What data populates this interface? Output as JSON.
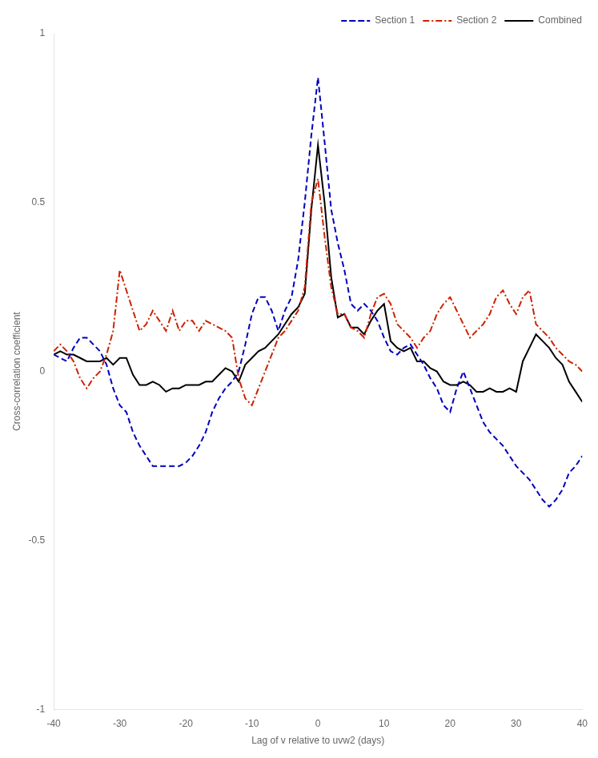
{
  "chart_data": {
    "type": "line",
    "xlabel": "Lag of v relative to uvw2 (days)",
    "ylabel": "Cross-correlation coefficient",
    "x": [
      -40,
      -39,
      -38,
      -37,
      -36,
      -35,
      -34,
      -33,
      -32,
      -31,
      -30,
      -29,
      -28,
      -27,
      -26,
      -25,
      -24,
      -23,
      -22,
      -21,
      -20,
      -19,
      -18,
      -17,
      -16,
      -15,
      -14,
      -13,
      -12,
      -11,
      -10,
      -9,
      -8,
      -7,
      -6,
      -5,
      -4,
      -3,
      -2,
      -1,
      0,
      1,
      2,
      3,
      4,
      5,
      6,
      7,
      8,
      9,
      10,
      11,
      12,
      13,
      14,
      15,
      16,
      17,
      18,
      19,
      20,
      21,
      22,
      23,
      24,
      25,
      26,
      27,
      28,
      29,
      30,
      31,
      32,
      33,
      34,
      35,
      36,
      37,
      38,
      39,
      40
    ],
    "series": [
      {
        "name": "Section 1",
        "color": "#0000bb",
        "line_style": "dashed",
        "values": [
          0.05,
          0.04,
          0.03,
          0.07,
          0.1,
          0.1,
          0.08,
          0.06,
          0.02,
          -0.05,
          -0.1,
          -0.12,
          -0.18,
          -0.22,
          -0.25,
          -0.28,
          -0.28,
          -0.28,
          -0.28,
          -0.28,
          -0.27,
          -0.25,
          -0.22,
          -0.18,
          -0.12,
          -0.08,
          -0.05,
          -0.03,
          0.0,
          0.08,
          0.17,
          0.22,
          0.22,
          0.18,
          0.12,
          0.18,
          0.22,
          0.33,
          0.5,
          0.7,
          0.87,
          0.68,
          0.48,
          0.38,
          0.3,
          0.2,
          0.18,
          0.2,
          0.18,
          0.15,
          0.1,
          0.06,
          0.05,
          0.07,
          0.08,
          0.05,
          0.02,
          -0.02,
          -0.05,
          -0.1,
          -0.12,
          -0.05,
          0.0,
          -0.05,
          -0.1,
          -0.15,
          -0.18,
          -0.2,
          -0.22,
          -0.25,
          -0.28,
          -0.3,
          -0.32,
          -0.35,
          -0.38,
          -0.4,
          -0.38,
          -0.35,
          -0.3,
          -0.28,
          -0.25
        ]
      },
      {
        "name": "Section 2",
        "color": "#cc2200",
        "line_style": "dashdot",
        "values": [
          0.06,
          0.08,
          0.06,
          0.03,
          -0.02,
          -0.05,
          -0.02,
          0.0,
          0.05,
          0.12,
          0.3,
          0.24,
          0.18,
          0.12,
          0.14,
          0.18,
          0.15,
          0.12,
          0.18,
          0.12,
          0.15,
          0.15,
          0.12,
          0.15,
          0.14,
          0.13,
          0.12,
          0.1,
          -0.02,
          -0.08,
          -0.1,
          -0.05,
          0.0,
          0.05,
          0.1,
          0.12,
          0.15,
          0.18,
          0.25,
          0.5,
          0.57,
          0.4,
          0.25,
          0.17,
          0.17,
          0.13,
          0.12,
          0.1,
          0.17,
          0.22,
          0.23,
          0.2,
          0.14,
          0.12,
          0.1,
          0.07,
          0.1,
          0.12,
          0.17,
          0.2,
          0.22,
          0.18,
          0.14,
          0.1,
          0.12,
          0.14,
          0.17,
          0.22,
          0.24,
          0.2,
          0.17,
          0.22,
          0.24,
          0.14,
          0.12,
          0.1,
          0.07,
          0.05,
          0.03,
          0.02,
          0.0
        ]
      },
      {
        "name": "Combined",
        "color": "#000000",
        "line_style": "solid",
        "values": [
          0.05,
          0.06,
          0.05,
          0.05,
          0.04,
          0.03,
          0.03,
          0.03,
          0.04,
          0.02,
          0.04,
          0.04,
          -0.01,
          -0.04,
          -0.04,
          -0.03,
          -0.04,
          -0.06,
          -0.05,
          -0.05,
          -0.04,
          -0.04,
          -0.04,
          -0.03,
          -0.03,
          -0.01,
          0.01,
          0.0,
          -0.03,
          0.02,
          0.04,
          0.06,
          0.07,
          0.09,
          0.11,
          0.14,
          0.17,
          0.19,
          0.23,
          0.48,
          0.67,
          0.5,
          0.28,
          0.16,
          0.17,
          0.13,
          0.13,
          0.11,
          0.15,
          0.18,
          0.2,
          0.09,
          0.07,
          0.06,
          0.07,
          0.03,
          0.03,
          0.01,
          0.0,
          -0.03,
          -0.04,
          -0.04,
          -0.03,
          -0.04,
          -0.06,
          -0.06,
          -0.05,
          -0.06,
          -0.06,
          -0.05,
          -0.06,
          0.03,
          0.07,
          0.11,
          0.09,
          0.07,
          0.04,
          0.02,
          -0.03,
          -0.06,
          -0.09
        ]
      }
    ],
    "xlim": [
      -40,
      40
    ],
    "ylim": [
      -1,
      1
    ],
    "xticks": [
      -40,
      -30,
      -20,
      -10,
      0,
      10,
      20,
      30,
      40
    ],
    "yticks": [
      -1,
      -0.5,
      0,
      0.5,
      1
    ],
    "grid": false,
    "legend": "upper right"
  }
}
